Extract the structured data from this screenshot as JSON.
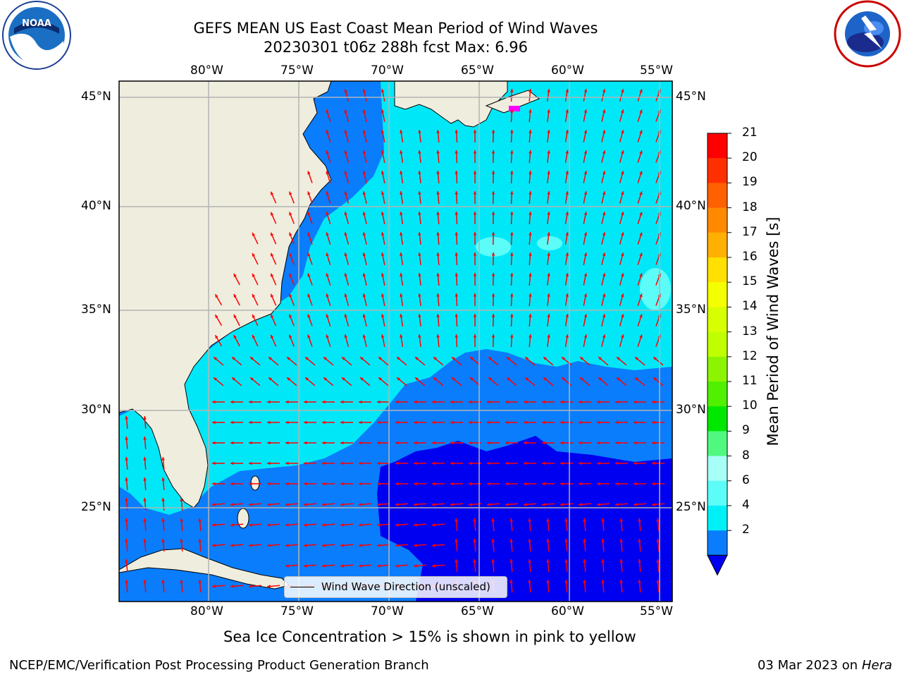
{
  "header": {
    "title_line1": "GEFS MEAN US East Coast Mean Period of Wind Waves",
    "title_line2": "20230301 t06z 288h fcst   Max: 6.96"
  },
  "logos": {
    "left": {
      "icon": "noaa-logo-icon",
      "text": "NOAA"
    },
    "right": {
      "icon": "nws-logo-icon",
      "text": "NATIONAL WEATHER SERVICE"
    }
  },
  "map": {
    "lon_ticks": [
      "80°W",
      "75°W",
      "70°W",
      "65°W",
      "60°W",
      "55°W"
    ],
    "lat_ticks": [
      "45°N",
      "40°N",
      "35°N",
      "30°N",
      "25°N"
    ],
    "legend_label": "Wind Wave Direction (unscaled)",
    "colors": {
      "land": "#efedde",
      "band_2_4": "#0a7dfc",
      "band_4_6": "#00e8f8",
      "below_2": "#0000f0",
      "arrow": "#ff0000"
    }
  },
  "colorbar": {
    "label": "Mean Period of Wind Waves [s]",
    "ticks": [
      "21",
      "20",
      "19",
      "18",
      "17",
      "16",
      "15",
      "14",
      "13",
      "12",
      "11",
      "10",
      "9",
      "8",
      "6",
      "4",
      "2"
    ],
    "colors": [
      "#ff0000",
      "#ff3000",
      "#ff6000",
      "#ff8a00",
      "#ffb000",
      "#ffe000",
      "#f4ff00",
      "#d8ff00",
      "#c0ff00",
      "#8cf400",
      "#50f000",
      "#00e800",
      "#50f880",
      "#a8fff8",
      "#5cfcf8",
      "#00f0f8",
      "#0a7dfc"
    ],
    "under_color": "#0000f0"
  },
  "subtitle": "Sea Ice Concentration > 15% is shown in pink to yellow",
  "footer": {
    "left": "NCEP/EMC/Verification Post Processing Product Generation Branch",
    "right_date": "03 Mar 2023 on",
    "right_host": "Hera"
  }
}
